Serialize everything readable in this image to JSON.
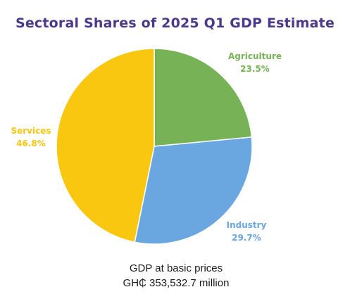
{
  "chart_data": {
    "type": "pie",
    "title": "Sectoral Shares of 2025 Q1 GDP Estimate",
    "unit": "%",
    "slices": [
      {
        "name": "Agriculture",
        "value": 23.5,
        "label": "23.5%",
        "color": "#77b356"
      },
      {
        "name": "Industry",
        "value": 29.7,
        "label": "29.7%",
        "color": "#6aa6df"
      },
      {
        "name": "Services",
        "value": 46.8,
        "label": "46.8%",
        "color": "#f9c610"
      }
    ],
    "start_angle_deg": 0,
    "direction": "clockwise",
    "legend": "none"
  },
  "footnote": {
    "line1": "GDP at basic prices",
    "line2": "GH₵  353,532.7 million"
  },
  "colors": {
    "title": "#4b3a8c",
    "slice_border": "#ffffff"
  }
}
